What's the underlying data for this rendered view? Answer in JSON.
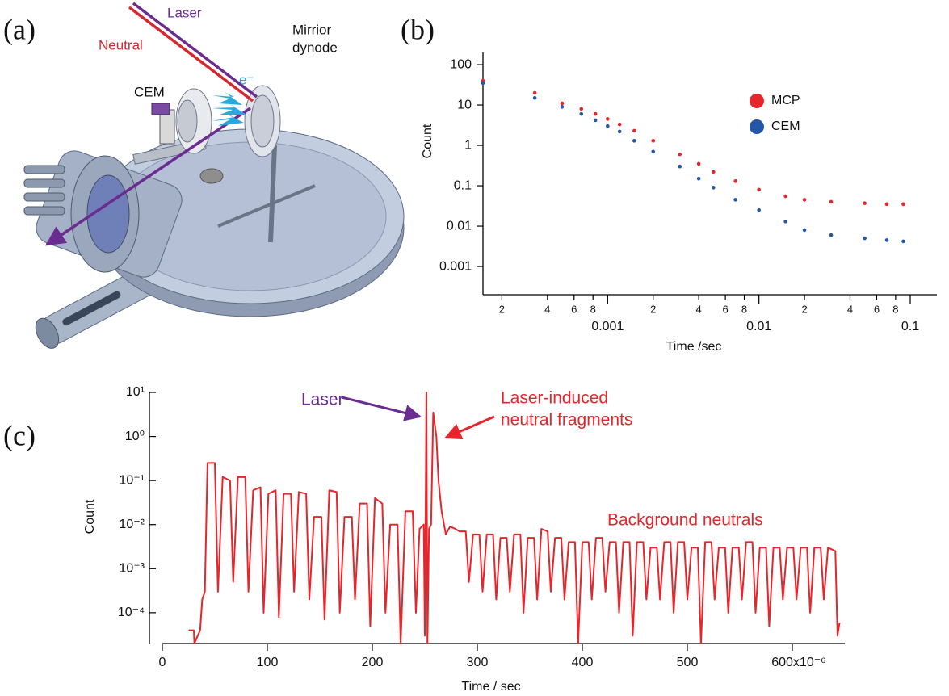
{
  "figure": {
    "panel_labels": [
      "(a)",
      "(b)",
      "(c)"
    ]
  },
  "diagram": {
    "laser": "Laser",
    "neutral": "Neutral",
    "cem": "CEM",
    "mirror_dynode": [
      "Mirrior",
      "dynode"
    ],
    "electron": "e⁻"
  },
  "chart_data": [
    {
      "type": "scatter",
      "xlabel": "Time /sec",
      "ylabel": "Count",
      "log_x": true,
      "log_y": true,
      "xlim": [
        0.00015,
        0.15
      ],
      "ylim": [
        0.0002,
        200
      ],
      "xticks": [
        {
          "value": 0.0002,
          "label": "2"
        },
        {
          "value": 0.0004,
          "label": "4"
        },
        {
          "value": 0.0006,
          "label": "6"
        },
        {
          "value": 0.0008,
          "label": "8"
        },
        0.001,
        {
          "value": 0.002,
          "label": "2"
        },
        {
          "value": 0.004,
          "label": "4"
        },
        {
          "value": 0.006,
          "label": "6"
        },
        {
          "value": 0.008,
          "label": "8"
        },
        0.01,
        {
          "value": 0.02,
          "label": "2"
        },
        {
          "value": 0.04,
          "label": "4"
        },
        {
          "value": 0.06,
          "label": "6"
        },
        {
          "value": 0.08,
          "label": "8"
        },
        0.1
      ],
      "yticks": [
        100,
        10,
        1,
        0.1,
        0.01,
        0.001
      ],
      "legend": "upper right",
      "x": [
        0.00015,
        0.00033,
        0.0005,
        0.00067,
        0.00083,
        0.001,
        0.0012,
        0.0015,
        0.002,
        0.003,
        0.004,
        0.005,
        0.007,
        0.01,
        0.015,
        0.02,
        0.03,
        0.05,
        0.07,
        0.09
      ],
      "series": [
        {
          "name": "MCP",
          "color": "#e8252b",
          "values": [
            40,
            20,
            11,
            8,
            6,
            4.5,
            3.3,
            2.3,
            1.3,
            0.6,
            0.35,
            0.22,
            0.13,
            0.08,
            0.055,
            0.045,
            0.04,
            0.037,
            0.035,
            0.035
          ]
        },
        {
          "name": "CEM",
          "color": "#2457a8",
          "values": [
            35,
            15,
            9,
            6,
            4.2,
            3,
            2.2,
            1.3,
            0.7,
            0.3,
            0.15,
            0.09,
            0.045,
            0.025,
            0.013,
            0.008,
            0.006,
            0.005,
            0.0045,
            0.0042
          ]
        }
      ]
    },
    {
      "type": "line",
      "xlabel": "Time / sec",
      "ylabel": "Count",
      "log_y": true,
      "xlim": [
        0,
        650
      ],
      "ylim": [
        2e-05,
        10
      ],
      "xticks": [
        0,
        100,
        200,
        300,
        400,
        500,
        {
          "value": 600,
          "label": "600x10⁻⁶"
        }
      ],
      "yticks": [
        {
          "value": 10,
          "label": "10¹"
        },
        {
          "value": 1,
          "label": "10⁰"
        },
        {
          "value": 0.1,
          "label": "10⁻¹"
        },
        {
          "value": 0.01,
          "label": "10⁻²"
        },
        {
          "value": 0.001,
          "label": "10⁻³"
        },
        {
          "value": 0.0001,
          "label": "10⁻⁴"
        }
      ],
      "color": "#e8252b",
      "x": [
        25,
        30,
        30.5,
        36,
        38,
        40.5,
        43,
        50,
        53,
        57.5,
        64.5,
        67.5,
        72,
        79,
        82,
        86.5,
        93.5,
        96.5,
        101,
        108,
        111,
        115.5,
        122.5,
        125.5,
        130,
        137,
        140,
        144.5,
        151.5,
        154.5,
        159,
        166,
        169,
        173.5,
        180.5,
        183.5,
        188,
        195,
        198,
        202.5,
        209.5,
        212.5,
        217,
        224,
        227,
        231.5,
        238.5,
        241.5,
        245,
        249,
        250,
        251.5,
        252.5,
        254,
        256,
        258,
        261,
        263,
        266,
        270,
        274,
        279,
        283,
        289,
        292,
        296,
        302,
        305,
        309,
        315,
        318,
        322,
        328,
        331,
        335,
        341,
        344,
        348,
        354,
        357,
        361,
        367,
        370,
        374,
        380,
        383,
        387,
        393,
        396,
        400,
        406,
        409,
        413,
        419,
        422,
        426,
        432,
        435,
        439,
        445,
        448,
        452,
        458,
        461,
        465,
        471,
        474,
        478,
        484,
        487,
        491,
        497,
        500,
        504,
        510,
        513,
        517,
        523,
        526,
        530,
        536,
        539,
        543,
        549,
        552,
        556,
        562,
        565,
        569,
        575,
        578,
        582,
        588,
        591,
        595,
        601,
        604,
        608,
        614,
        617,
        621,
        627,
        630,
        634,
        641,
        643,
        645
      ],
      "values": [
        4e-05,
        4e-05,
        2e-05,
        4e-05,
        0.0002,
        0.0003,
        0.25,
        0.25,
        0.0003,
        0.12,
        0.1,
        0.0005,
        0.12,
        0.12,
        0.0003,
        0.06,
        0.07,
        0.0001,
        0.05,
        0.06,
        8e-05,
        0.05,
        0.05,
        0.0003,
        0.055,
        0.05,
        0.0002,
        0.015,
        0.015,
        7e-05,
        0.06,
        0.055,
        0.0001,
        0.015,
        0.015,
        0.0002,
        0.03,
        0.03,
        5e-05,
        0.04,
        0.03,
        0.0001,
        0.01,
        0.01,
        2e-05,
        0.02,
        0.02,
        0.0001,
        0.008,
        0.01,
        3e-05,
        10,
        2e-05,
        0.008,
        0.01,
        3.5,
        1,
        0.1,
        0.02,
        0.006,
        0.009,
        0.008,
        0.007,
        0.007,
        0.0005,
        0.006,
        0.006,
        0.0003,
        0.006,
        0.006,
        0.0002,
        0.005,
        0.005,
        0.0003,
        0.006,
        0.006,
        0.0001,
        0.005,
        0.005,
        0.0002,
        0.008,
        0.007,
        0.0003,
        0.005,
        0.005,
        0.0002,
        0.004,
        0.004,
        2e-05,
        0.004,
        0.004,
        0.0002,
        0.005,
        0.005,
        0.0003,
        0.004,
        0.004,
        0.0001,
        0.004,
        0.004,
        3e-05,
        0.004,
        0.004,
        0.0002,
        0.003,
        0.003,
        0.0002,
        0.004,
        0.004,
        0.0001,
        0.004,
        0.004,
        0.0002,
        0.003,
        0.003,
        2e-05,
        0.004,
        0.004,
        0.0002,
        0.003,
        0.003,
        0.0001,
        0.003,
        0.003,
        0.0002,
        0.004,
        0.004,
        0.0001,
        0.003,
        0.003,
        5e-05,
        0.003,
        0.003,
        0.0002,
        0.003,
        0.003,
        0.0002,
        0.003,
        0.003,
        0.0001,
        0.003,
        0.003,
        0.0002,
        0.003,
        0.0025,
        3e-05,
        6e-05
      ],
      "annotations": [
        {
          "text": "Laser",
          "color": "#6a2c91"
        },
        {
          "text": [
            "Laser-induced",
            "neutral fragments"
          ],
          "color": "#e8252b"
        },
        {
          "text": "Background neutrals",
          "color": "#e8252b"
        }
      ]
    }
  ]
}
